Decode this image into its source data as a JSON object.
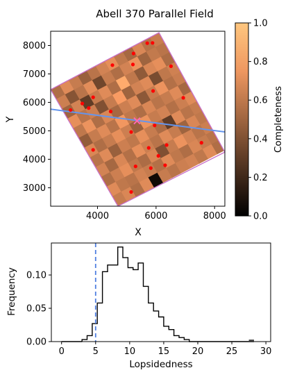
{
  "chart_data": [
    {
      "type": "heatmap",
      "title": "Abell 370 Parallel Field",
      "xlabel": "X",
      "ylabel": "Y",
      "xlim": [
        2400,
        8350
      ],
      "ylim": [
        2350,
        8500
      ],
      "xticks": [
        4000,
        6000,
        8000
      ],
      "yticks": [
        3000,
        4000,
        5000,
        6000,
        7000,
        8000
      ],
      "colorbar": {
        "label": "Completeness",
        "range": [
          0.0,
          1.0
        ],
        "ticks": [
          "0.0",
          "0.2",
          "0.4",
          "0.6",
          "0.8",
          "1.0"
        ],
        "colormap": "copper"
      },
      "field_corners": [
        [
          2400,
          6450
        ],
        [
          6100,
          8450
        ],
        [
          8350,
          4250
        ],
        [
          4700,
          2350
        ]
      ],
      "field_outline_color": "#c870c8",
      "grid": {
        "rows": 12,
        "cols": 12,
        "values": [
          [
            0.55,
            0.7,
            0.62,
            0.48,
            0.58,
            0.66,
            0.72,
            0.6,
            0.52,
            0.68,
            0.57,
            0.63
          ],
          [
            0.64,
            0.42,
            0.58,
            0.71,
            0.35,
            0.62,
            0.55,
            0.66,
            0.74,
            0.5,
            0.61,
            0.58
          ],
          [
            0.5,
            0.66,
            0.3,
            0.62,
            0.7,
            0.55,
            0.86,
            0.6,
            0.45,
            0.68,
            0.72,
            0.54
          ],
          [
            0.72,
            0.58,
            0.64,
            0.4,
            0.62,
            0.78,
            0.5,
            0.66,
            0.7,
            0.38,
            0.6,
            0.65
          ],
          [
            0.6,
            0.74,
            0.55,
            0.68,
            0.52,
            0.64,
            0.7,
            0.44,
            0.62,
            0.74,
            0.56,
            0.63
          ],
          [
            0.46,
            0.62,
            0.7,
            0.58,
            0.76,
            0.6,
            0.55,
            0.68,
            0.58,
            0.62,
            0.7,
            0.52
          ],
          [
            0.68,
            0.55,
            0.62,
            0.72,
            0.64,
            0.48,
            0.74,
            0.62,
            0.66,
            0.56,
            0.64,
            0.7
          ],
          [
            0.58,
            0.7,
            0.48,
            0.64,
            0.6,
            0.72,
            0.62,
            0.54,
            0.3,
            0.7,
            0.58,
            0.62
          ],
          [
            0.66,
            0.52,
            0.68,
            0.56,
            0.72,
            0.64,
            0.58,
            0.7,
            0.62,
            0.5,
            0.68,
            0.6
          ],
          [
            0.55,
            0.64,
            0.72,
            0.6,
            0.54,
            0.68,
            0.4,
            0.62,
            0.74,
            0.66,
            0.58,
            0.64
          ],
          [
            0.7,
            0.6,
            0.58,
            0.66,
            0.62,
            0.56,
            0.7,
            0.6,
            0.55,
            0.68,
            0.62,
            0.58
          ],
          [
            0.62,
            0.68,
            0.55,
            0.7,
            0.05,
            0.62,
            0.58,
            0.64,
            0.66,
            0.6,
            0.7,
            0.55
          ]
        ]
      },
      "galaxies": {
        "color": "#ff0000",
        "points": [
          [
            5700,
            8080
          ],
          [
            5880,
            8090
          ],
          [
            5230,
            7720
          ],
          [
            4510,
            7310
          ],
          [
            5210,
            7330
          ],
          [
            6510,
            7270
          ],
          [
            5900,
            6400
          ],
          [
            3850,
            6180
          ],
          [
            6930,
            6160
          ],
          [
            3480,
            5960
          ],
          [
            3080,
            5730
          ],
          [
            3700,
            5800
          ],
          [
            4450,
            5680
          ],
          [
            5950,
            5190
          ],
          [
            5150,
            4960
          ],
          [
            7550,
            4580
          ],
          [
            6360,
            4500
          ],
          [
            5750,
            4400
          ],
          [
            3850,
            4330
          ],
          [
            6080,
            4120
          ],
          [
            5300,
            3750
          ],
          [
            5820,
            3690
          ],
          [
            6310,
            3790
          ],
          [
            5150,
            2850
          ]
        ]
      },
      "center_marker": {
        "x": 5350,
        "y": 5350,
        "color": "#ff69b4"
      },
      "axis_line": {
        "x1": 2400,
        "y1": 5760,
        "x2": 8350,
        "y2": 4960,
        "color": "#6495ed"
      }
    },
    {
      "type": "histogram",
      "xlabel": "Lopsidedness",
      "ylabel": "Frequency",
      "xlim": [
        -1.5,
        30.7
      ],
      "ylim": [
        0,
        0.148
      ],
      "xticks": [
        0,
        5,
        10,
        15,
        20,
        25,
        30
      ],
      "yticks": [
        "0.00",
        "0.05",
        "0.10"
      ],
      "bin_edges": [
        3.0,
        3.75,
        4.5,
        5.25,
        6.0,
        6.75,
        7.5,
        8.25,
        9.0,
        9.75,
        10.5,
        11.25,
        12.0,
        12.75,
        13.5,
        14.25,
        15.0,
        15.75,
        16.5,
        17.25,
        18.0,
        18.75,
        19.5,
        20.25,
        21.0,
        21.75,
        27.5,
        28.25
      ],
      "values": [
        0.003,
        0.009,
        0.027,
        0.058,
        0.105,
        0.115,
        0.115,
        0.142,
        0.126,
        0.111,
        0.108,
        0.118,
        0.083,
        0.058,
        0.046,
        0.037,
        0.023,
        0.018,
        0.009,
        0.006,
        0.003,
        0.0,
        0.0,
        0.0,
        0.0,
        0.0,
        0.002
      ],
      "reference_line": {
        "x": 5.0,
        "color": "#4f7fe0",
        "style": "dashed"
      },
      "color": "#000000"
    }
  ]
}
